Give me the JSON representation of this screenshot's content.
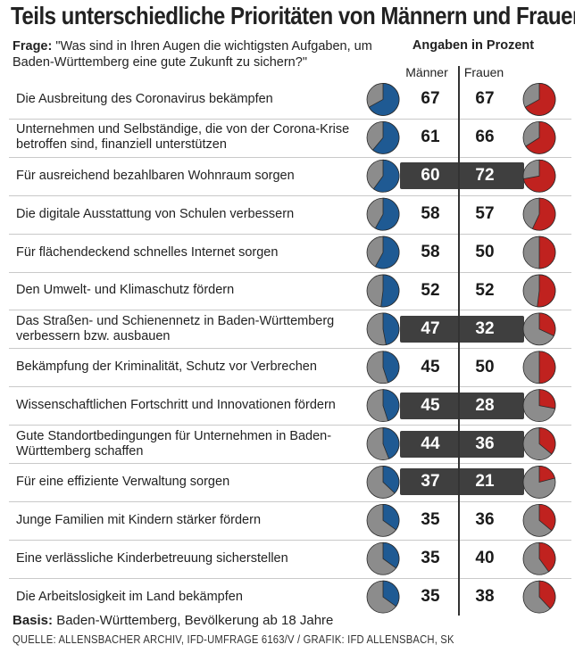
{
  "title": "Teils unterschiedliche Prioritäten von Männern und Frauen",
  "question": {
    "prefix": "Frage:",
    "text": "\"Was sind in Ihren Augen die wichtigsten Aufgaben, um Baden-Württemberg eine gute Zukunft zu sichern?\""
  },
  "unit_label": "Angaben in Prozent",
  "columns": {
    "men": "Männer",
    "women": "Frauen"
  },
  "colors": {
    "men": "#1f5a93",
    "women": "#c0221f",
    "rest": "#8c8c8c",
    "highlight": "#3f3f3f"
  },
  "chart_data": {
    "type": "table",
    "series": [
      {
        "name": "Männer",
        "values": [
          67,
          61,
          60,
          58,
          58,
          52,
          47,
          45,
          45,
          44,
          37,
          35,
          35,
          35
        ]
      },
      {
        "name": "Frauen",
        "values": [
          67,
          66,
          72,
          57,
          50,
          52,
          32,
          50,
          28,
          36,
          21,
          36,
          40,
          38
        ]
      }
    ],
    "rows": [
      {
        "label": "Die Ausbreitung des Coronavirus bekämpfen",
        "men": 67,
        "women": 67,
        "highlight": false
      },
      {
        "label": "Unternehmen und Selbständige, die von der Corona-Krise betroffen sind, finanziell unterstützen",
        "men": 61,
        "women": 66,
        "highlight": false
      },
      {
        "label": "Für ausreichend bezahlbaren Wohnraum sorgen",
        "men": 60,
        "women": 72,
        "highlight": true
      },
      {
        "label": "Die digitale Ausstattung von Schulen verbessern",
        "men": 58,
        "women": 57,
        "highlight": false
      },
      {
        "label": "Für flächendeckend schnelles Internet sorgen",
        "men": 58,
        "women": 50,
        "highlight": false
      },
      {
        "label": "Den Umwelt- und Klimaschutz fördern",
        "men": 52,
        "women": 52,
        "highlight": false
      },
      {
        "label": "Das Straßen- und Schienennetz in Baden-Württemberg verbessern bzw. ausbauen",
        "men": 47,
        "women": 32,
        "highlight": true
      },
      {
        "label": "Bekämpfung der Kriminalität, Schutz vor Verbrechen",
        "men": 45,
        "women": 50,
        "highlight": false
      },
      {
        "label": "Wissenschaftlichen Fortschritt und Innovationen fördern",
        "men": 45,
        "women": 28,
        "highlight": true
      },
      {
        "label": "Gute Standortbedingungen für Unternehmen in Baden-Württemberg schaffen",
        "men": 44,
        "women": 36,
        "highlight": true
      },
      {
        "label": "Für eine effiziente Verwaltung sorgen",
        "men": 37,
        "women": 21,
        "highlight": true
      },
      {
        "label": "Junge Familien mit Kindern stärker fördern",
        "men": 35,
        "women": 36,
        "highlight": false
      },
      {
        "label": "Eine verlässliche Kinderbetreuung sicherstellen",
        "men": 35,
        "women": 40,
        "highlight": false
      },
      {
        "label": "Die Arbeitslosigkeit im Land bekämpfen",
        "men": 35,
        "women": 38,
        "highlight": false
      }
    ]
  },
  "basis": {
    "prefix": "Basis:",
    "text": "Baden-Württemberg, Bevölkerung ab 18 Jahre"
  },
  "source": "QUELLE: ALLENSBACHER ARCHIV, IFD-UMFRAGE 6163/V / GRAFIK: IFD ALLENSBACH, SK"
}
